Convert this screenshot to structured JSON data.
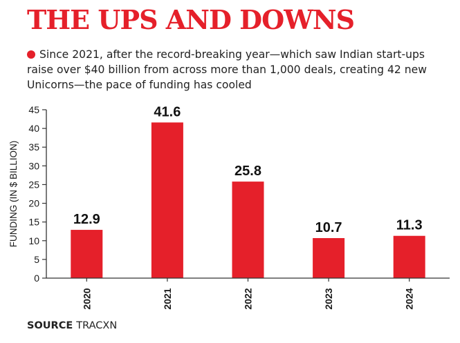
{
  "header": {
    "title": "THE UPS AND DOWNS",
    "subtitle": "Since 2021, after the record-breaking year—which saw Indian start-ups raise over $40 billion from across more than 1,000 deals, creating 42 new Unicorns—the pace of funding has cooled"
  },
  "footer": {
    "source_label": "SOURCE",
    "source_name": "TRACXN"
  },
  "colors": {
    "accent": "#e5202a",
    "bar": "#e5202a",
    "axis": "#333333",
    "text": "#1a1a1a"
  },
  "chart_data": {
    "type": "bar",
    "title": "",
    "categories": [
      "2020",
      "2021",
      "2022",
      "2023",
      "2024"
    ],
    "values": [
      12.9,
      41.6,
      25.8,
      10.7,
      11.3
    ],
    "value_labels": [
      "12.9",
      "41.6",
      "25.8",
      "10.7",
      "11.3"
    ],
    "xlabel": "",
    "ylabel": "FUNDING (IN $ BILLION)",
    "ylim": [
      0,
      45
    ],
    "yticks": [
      0,
      5,
      10,
      15,
      20,
      25,
      30,
      35,
      40,
      45
    ],
    "grid": false,
    "legend": "none"
  }
}
